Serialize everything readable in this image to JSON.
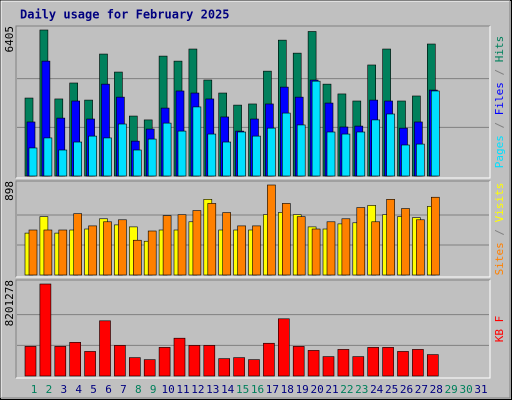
{
  "chart_data": [
    {
      "type": "bar",
      "title": "Daily usage for February 2025",
      "ylim": [
        0,
        6405
      ],
      "yticks": [
        6405
      ],
      "series": [
        {
          "name": "Hits",
          "color": "#00805c",
          "values": [
            3420,
            6405,
            3380,
            4080,
            3330,
            5350,
            4560,
            2630,
            2460,
            5260,
            5040,
            5570,
            4210,
            3640,
            3110,
            3160,
            4600,
            5960,
            5390,
            6340,
            4030,
            3600,
            3290,
            4870,
            5570,
            3290,
            3510,
            5790,
            null,
            null,
            null
          ]
        },
        {
          "name": "Files",
          "color": "#0000ff",
          "values": [
            2370,
            5040,
            2540,
            3290,
            2500,
            4030,
            3460,
            1530,
            2060,
            2980,
            3730,
            3640,
            3380,
            2590,
            1970,
            2500,
            3160,
            3900,
            3460,
            4210,
            3200,
            2150,
            2190,
            3330,
            3290,
            2100,
            2370,
            3770,
            null,
            null,
            null
          ]
        },
        {
          "name": "Pages",
          "color": "#00e0ff",
          "values": [
            1230,
            1670,
            1140,
            1490,
            1750,
            1670,
            2280,
            1140,
            1620,
            2320,
            1970,
            3030,
            1840,
            1490,
            1930,
            1750,
            2100,
            2760,
            2240,
            4160,
            1930,
            1840,
            1930,
            2460,
            2720,
            1360,
            1400,
            3730,
            null,
            null,
            null
          ]
        }
      ]
    },
    {
      "type": "bar",
      "ylim": [
        0,
        898
      ],
      "yticks": [
        898
      ],
      "series": [
        {
          "name": "Visits",
          "color": "#ffff00",
          "values": [
            418,
            582,
            418,
            449,
            459,
            561,
            500,
            480,
            337,
            449,
            449,
            531,
            755,
            449,
            449,
            449,
            602,
            623,
            602,
            480,
            459,
            510,
            521,
            694,
            602,
            582,
            572,
            684,
            null,
            null,
            null
          ]
        },
        {
          "name": "Sites",
          "color": "#ff8000",
          "values": [
            449,
            449,
            449,
            612,
            490,
            531,
            551,
            347,
            439,
            592,
            602,
            643,
            714,
            623,
            490,
            490,
            898,
            714,
            582,
            459,
            531,
            561,
            673,
            531,
            755,
            663,
            551,
            776,
            null,
            null,
            null
          ]
        }
      ]
    },
    {
      "type": "bar",
      "ylim": [
        0,
        8201278
      ],
      "yticks": [
        8201278
      ],
      "categories": [
        "1",
        "2",
        "3",
        "4",
        "5",
        "6",
        "7",
        "8",
        "9",
        "10",
        "11",
        "12",
        "13",
        "14",
        "15",
        "16",
        "17",
        "18",
        "19",
        "20",
        "21",
        "22",
        "23",
        "24",
        "25",
        "26",
        "27",
        "28",
        "29",
        "30",
        "31"
      ],
      "label_colors": [
        "#00805c",
        "#00805c",
        "#000080",
        "#000080",
        "#000080",
        "#000080",
        "#000080",
        "#00805c",
        "#00805c",
        "#000080",
        "#000080",
        "#000080",
        "#000080",
        "#000080",
        "#00805c",
        "#00805c",
        "#000080",
        "#000080",
        "#000080",
        "#000080",
        "#000080",
        "#00805c",
        "#00805c",
        "#000080",
        "#000080",
        "#000080",
        "#000080",
        "#000080",
        "#00805c",
        "#00805c",
        "#000080"
      ],
      "series": [
        {
          "name": "KB F",
          "color": "#ff0000",
          "values": [
            2640000,
            8201278,
            2640000,
            3000000,
            2190000,
            4920000,
            2730000,
            1640000,
            1460000,
            2550000,
            3370000,
            2730000,
            2730000,
            1550000,
            1640000,
            1460000,
            2920000,
            5100000,
            2640000,
            2280000,
            1730000,
            2370000,
            1730000,
            2550000,
            2550000,
            2190000,
            2370000,
            1910000,
            null,
            null,
            null
          ]
        }
      ]
    }
  ]
}
